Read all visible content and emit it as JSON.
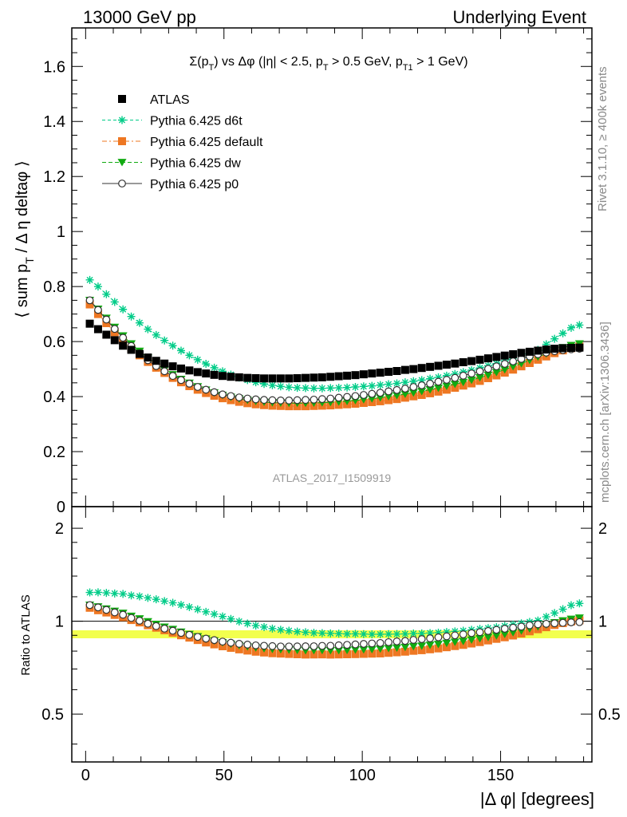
{
  "header": {
    "left": "13000 GeV pp",
    "right": "Underlying Event"
  },
  "side_labels": {
    "rivet": "Rivet 3.1.10, ≥ 400k events",
    "mcplots": "mcplots.cern.ch [arXiv:1306.3436]"
  },
  "chart_data": {
    "type": "scatter",
    "title": "Σ(p_T) vs Δφ (|η| < 2.5, p_T > 0.5 GeV, p_T1 > 1 GeV)",
    "analysis_label": "ATLAS_2017_I1509919",
    "xlabel": "|Δ φ| [degrees]",
    "ylabel": "⟨ sum p_T / Δ η deltaφ ⟩",
    "ratio_ylabel": "Ratio to ATLAS",
    "xlim": [
      -5,
      183
    ],
    "ylim": [
      0,
      1.74
    ],
    "ratio_ylim": [
      0.35,
      2.35
    ],
    "ratio_scale": "log",
    "legend_position": "top-left",
    "x_ticks": [
      "0",
      "50",
      "100",
      "150"
    ],
    "y_ticks": [
      "0",
      "0.2",
      "0.4",
      "0.6",
      "0.8",
      "1",
      "1.2",
      "1.4",
      "1.6"
    ],
    "ratio_ticks": [
      "0.5",
      "1",
      "2"
    ],
    "x": [
      1.5,
      4.5,
      7.5,
      10.5,
      13.5,
      16.5,
      19.5,
      22.5,
      25.5,
      28.5,
      31.5,
      34.5,
      37.5,
      40.5,
      43.5,
      46.5,
      49.5,
      52.5,
      55.5,
      58.5,
      61.5,
      64.5,
      67.5,
      70.5,
      73.5,
      76.5,
      79.5,
      82.5,
      85.5,
      88.5,
      91.5,
      94.5,
      97.5,
      100.5,
      103.5,
      106.5,
      109.5,
      112.5,
      115.5,
      118.5,
      121.5,
      124.5,
      127.5,
      130.5,
      133.5,
      136.5,
      139.5,
      142.5,
      145.5,
      148.5,
      151.5,
      154.5,
      157.5,
      160.5,
      163.5,
      166.5,
      169.5,
      172.5,
      175.5,
      178.5
    ],
    "series": [
      {
        "name": "ATLAS",
        "color": "#000000",
        "marker": "square",
        "values": [
          0.665,
          0.645,
          0.625,
          0.605,
          0.585,
          0.57,
          0.555,
          0.542,
          0.53,
          0.52,
          0.51,
          0.502,
          0.495,
          0.489,
          0.484,
          0.479,
          0.475,
          0.472,
          0.47,
          0.468,
          0.467,
          0.466,
          0.466,
          0.466,
          0.466,
          0.467,
          0.468,
          0.469,
          0.47,
          0.472,
          0.474,
          0.476,
          0.478,
          0.481,
          0.484,
          0.487,
          0.49,
          0.493,
          0.497,
          0.5,
          0.504,
          0.508,
          0.512,
          0.516,
          0.52,
          0.525,
          0.529,
          0.534,
          0.539,
          0.544,
          0.549,
          0.554,
          0.559,
          0.563,
          0.567,
          0.571,
          0.574,
          0.576,
          0.577,
          0.578
        ]
      },
      {
        "name": "Pythia 6.425 d6t",
        "color": "#00cc88",
        "marker": "star",
        "values": [
          0.824,
          0.8,
          0.772,
          0.744,
          0.717,
          0.691,
          0.668,
          0.645,
          0.624,
          0.604,
          0.585,
          0.567,
          0.55,
          0.534,
          0.519,
          0.505,
          0.492,
          0.48,
          0.469,
          0.46,
          0.452,
          0.446,
          0.441,
          0.437,
          0.434,
          0.432,
          0.431,
          0.43,
          0.43,
          0.431,
          0.432,
          0.433,
          0.435,
          0.437,
          0.439,
          0.442,
          0.445,
          0.448,
          0.452,
          0.456,
          0.46,
          0.465,
          0.47,
          0.476,
          0.482,
          0.489,
          0.496,
          0.504,
          0.512,
          0.52,
          0.53,
          0.54,
          0.55,
          0.56,
          0.57,
          0.59,
          0.61,
          0.63,
          0.65,
          0.66
        ]
      },
      {
        "name": "Pythia 6.425 default",
        "color": "#ee7722",
        "marker": "square",
        "values": [
          0.735,
          0.7,
          0.667,
          0.634,
          0.603,
          0.575,
          0.55,
          0.526,
          0.505,
          0.486,
          0.468,
          0.452,
          0.438,
          0.425,
          0.413,
          0.403,
          0.394,
          0.387,
          0.381,
          0.376,
          0.372,
          0.369,
          0.367,
          0.366,
          0.365,
          0.365,
          0.365,
          0.366,
          0.367,
          0.368,
          0.37,
          0.372,
          0.374,
          0.377,
          0.38,
          0.383,
          0.387,
          0.391,
          0.396,
          0.401,
          0.406,
          0.412,
          0.418,
          0.425,
          0.432,
          0.44,
          0.448,
          0.457,
          0.467,
          0.477,
          0.487,
          0.498,
          0.51,
          0.522,
          0.534,
          0.546,
          0.558,
          0.568,
          0.576,
          0.582
        ]
      },
      {
        "name": "Pythia 6.425 dw",
        "color": "#11aa11",
        "marker": "triangle",
        "values": [
          0.75,
          0.718,
          0.685,
          0.652,
          0.621,
          0.592,
          0.565,
          0.54,
          0.518,
          0.498,
          0.48,
          0.463,
          0.449,
          0.436,
          0.424,
          0.414,
          0.405,
          0.398,
          0.392,
          0.387,
          0.383,
          0.38,
          0.378,
          0.377,
          0.376,
          0.376,
          0.376,
          0.377,
          0.378,
          0.379,
          0.381,
          0.383,
          0.386,
          0.389,
          0.392,
          0.396,
          0.4,
          0.404,
          0.409,
          0.414,
          0.419,
          0.425,
          0.431,
          0.438,
          0.445,
          0.452,
          0.46,
          0.469,
          0.478,
          0.488,
          0.498,
          0.509,
          0.52,
          0.532,
          0.544,
          0.556,
          0.568,
          0.578,
          0.586,
          0.592
        ]
      },
      {
        "name": "Pythia 6.425 p0",
        "color": "#333333",
        "marker": "circle",
        "values": [
          0.75,
          0.715,
          0.68,
          0.646,
          0.614,
          0.584,
          0.557,
          0.532,
          0.511,
          0.492,
          0.475,
          0.46,
          0.447,
          0.435,
          0.425,
          0.416,
          0.408,
          0.402,
          0.397,
          0.393,
          0.39,
          0.388,
          0.387,
          0.386,
          0.386,
          0.387,
          0.388,
          0.389,
          0.391,
          0.393,
          0.396,
          0.399,
          0.402,
          0.406,
          0.41,
          0.414,
          0.419,
          0.424,
          0.429,
          0.435,
          0.441,
          0.447,
          0.454,
          0.461,
          0.468,
          0.476,
          0.484,
          0.492,
          0.501,
          0.51,
          0.519,
          0.528,
          0.537,
          0.546,
          0.554,
          0.56,
          0.565,
          0.569,
          0.572,
          0.574
        ]
      }
    ]
  }
}
